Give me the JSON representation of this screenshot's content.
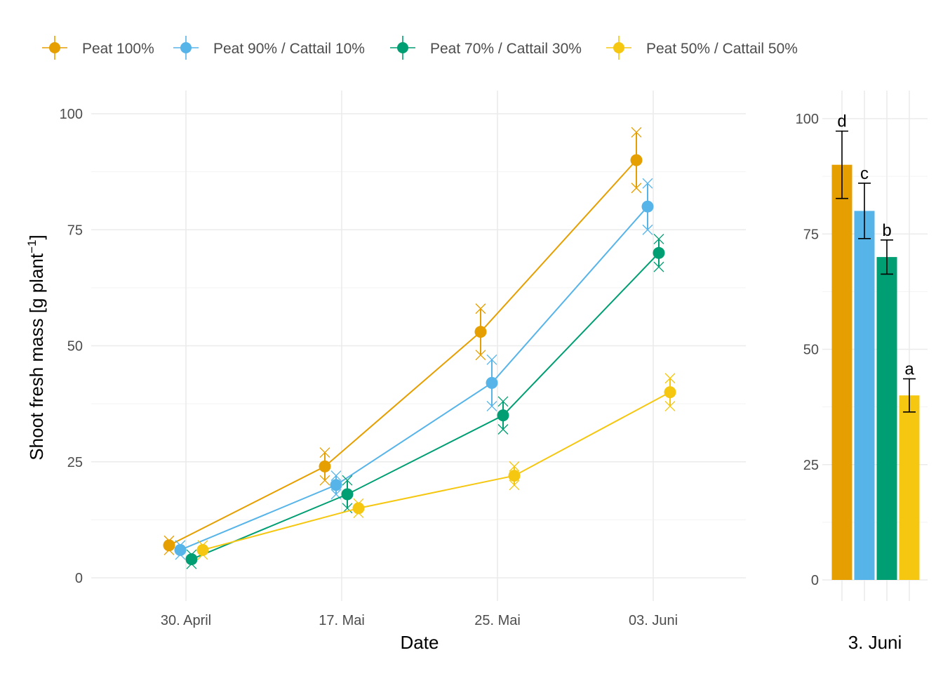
{
  "legend": {
    "items": [
      {
        "label": "Peat 100%",
        "color": "#E69F00"
      },
      {
        "label": "Peat 90% / Cattail 10%",
        "color": "#56B4E9"
      },
      {
        "label": "Peat 70% / Cattail 30%",
        "color": "#009E73"
      },
      {
        "label": "Peat 50% / Cattail 50%",
        "color": "#F5C710"
      }
    ]
  },
  "chart_data": [
    {
      "type": "line",
      "xlabel": "Date",
      "ylabel": "Shoot fresh mass [g plant",
      "ylabel_superscript": "−1",
      "ylabel_suffix": "]",
      "x_ticks": [
        "30. April",
        "17. Mai",
        "25. Mai",
        "03. Juni"
      ],
      "y_ticks": [
        "0",
        "25",
        "50",
        "75",
        "100"
      ],
      "ylim": [
        -5,
        105
      ],
      "grid": true,
      "legend_position": "top",
      "series": [
        {
          "name": "Peat 100%",
          "color": "#E69F00",
          "points": [
            {
              "x": "30. April",
              "y": 7,
              "ymin": 6,
              "ymax": 8,
              "reps": [
                6,
                8
              ]
            },
            {
              "x": "17. Mai",
              "y": 24,
              "ymin": 21,
              "ymax": 27,
              "reps": [
                21,
                27
              ]
            },
            {
              "x": "25. Mai",
              "y": 53,
              "ymin": 48,
              "ymax": 58,
              "reps": [
                48,
                58
              ]
            },
            {
              "x": "03. Juni",
              "y": 90,
              "ymin": 84,
              "ymax": 96,
              "reps": [
                84,
                96
              ]
            }
          ]
        },
        {
          "name": "Peat 90% / Cattail 10%",
          "color": "#56B4E9",
          "points": [
            {
              "x": "30. April",
              "y": 6,
              "ymin": 5,
              "ymax": 7,
              "reps": [
                5,
                7
              ]
            },
            {
              "x": "17. Mai",
              "y": 20,
              "ymin": 18,
              "ymax": 22,
              "reps": [
                18,
                22
              ]
            },
            {
              "x": "25. Mai",
              "y": 42,
              "ymin": 37,
              "ymax": 47,
              "reps": [
                37,
                47
              ]
            },
            {
              "x": "03. Juni",
              "y": 80,
              "ymin": 75,
              "ymax": 85,
              "reps": [
                75,
                85
              ]
            }
          ]
        },
        {
          "name": "Peat 70% / Cattail 30%",
          "color": "#009E73",
          "points": [
            {
              "x": "30. April",
              "y": 4,
              "ymin": 3,
              "ymax": 5,
              "reps": [
                3,
                5
              ]
            },
            {
              "x": "17. Mai",
              "y": 18,
              "ymin": 15,
              "ymax": 21,
              "reps": [
                15,
                21
              ]
            },
            {
              "x": "25. Mai",
              "y": 35,
              "ymin": 32,
              "ymax": 38,
              "reps": [
                32,
                38
              ]
            },
            {
              "x": "03. Juni",
              "y": 70,
              "ymin": 67,
              "ymax": 73,
              "reps": [
                67,
                73
              ]
            }
          ]
        },
        {
          "name": "Peat 50% / Cattail 50%",
          "color": "#F5C710",
          "points": [
            {
              "x": "30. April",
              "y": 6,
              "ymin": 5,
              "ymax": 7,
              "reps": [
                5,
                7
              ]
            },
            {
              "x": "17. Mai",
              "y": 15,
              "ymin": 14,
              "ymax": 16,
              "reps": [
                14,
                16
              ]
            },
            {
              "x": "25. Mai",
              "y": 22,
              "ymin": 20,
              "ymax": 24,
              "reps": [
                20,
                24
              ]
            },
            {
              "x": "03. Juni",
              "y": 40,
              "ymin": 37,
              "ymax": 43,
              "reps": [
                37,
                43
              ]
            }
          ]
        }
      ]
    },
    {
      "type": "bar",
      "xlabel": "3. Juni",
      "ylabel": "",
      "y_ticks": [
        "0",
        "25",
        "50",
        "75",
        "100"
      ],
      "ylim": [
        -5,
        105
      ],
      "grid": true,
      "categories": [
        "Peat 100%",
        "Peat 90% / Cattail 10%",
        "Peat 70% / Cattail 30%",
        "Peat 50% / Cattail 50%"
      ],
      "values": [
        90,
        80,
        70,
        40
      ],
      "errors": [
        7.3,
        6,
        3.7,
        3.6
      ],
      "letters": [
        "d",
        "c",
        "b",
        "a"
      ],
      "colors": [
        "#E69F00",
        "#56B4E9",
        "#009E73",
        "#F5C710"
      ]
    }
  ]
}
